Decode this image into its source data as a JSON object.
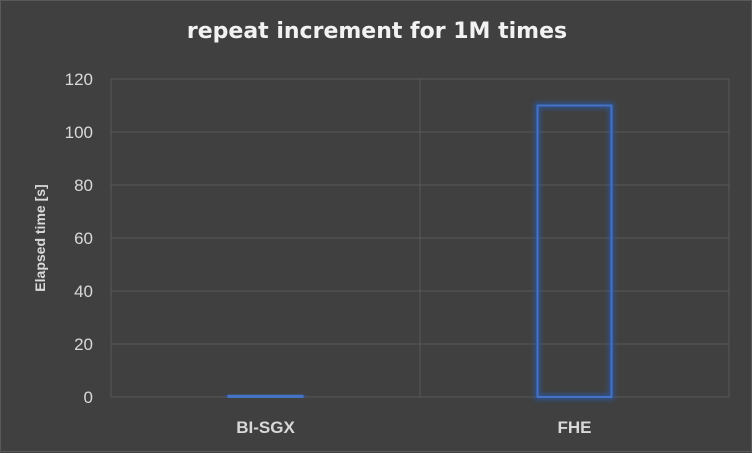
{
  "chart_data": {
    "type": "bar",
    "title": "repeat increment for 1M times",
    "xlabel": "",
    "ylabel": "Elapsed time [s]",
    "categories": [
      "BI-SGX",
      "FHE"
    ],
    "values": [
      0.5,
      110
    ],
    "ylim": [
      0,
      120
    ],
    "yticks": [
      0,
      20,
      40,
      60,
      80,
      100,
      120
    ],
    "grid": true,
    "legend": "none",
    "colors": {
      "background": "#404040",
      "bar_outline": "#4472c4",
      "bar_glow": "#2f5597",
      "grid": "#595959",
      "text": "#d9d9d9",
      "title": "#f2f2f2"
    }
  }
}
